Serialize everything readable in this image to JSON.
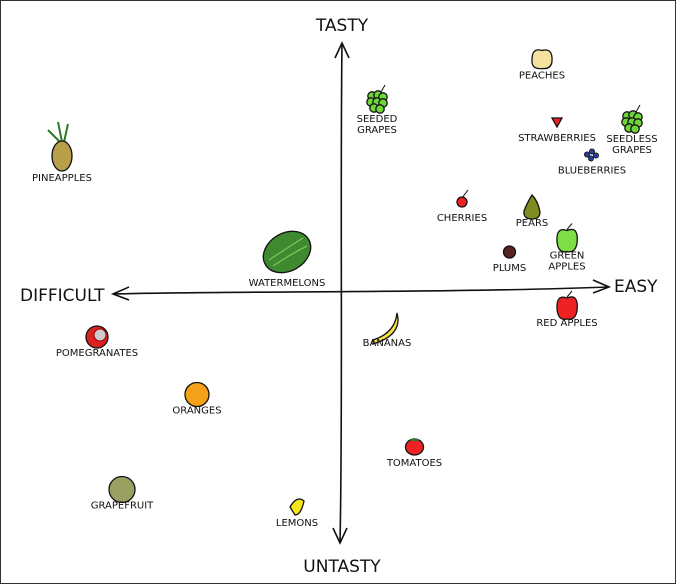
{
  "chart_data": {
    "type": "scatter",
    "xlabel_left": "DIFFICULT",
    "xlabel_right": "EASY",
    "ylabel_top": "TASTY",
    "ylabel_bottom": "UNTASTY",
    "xlim": [
      -1.2,
      1.2
    ],
    "ylim": [
      -1,
      1
    ],
    "grid": false,
    "points": [
      {
        "label": "PEACHES",
        "x": 0.8,
        "y": 0.93,
        "icon": "peach",
        "color": "#f5e2a0"
      },
      {
        "label": "SEEDED GRAPES",
        "x": 0.14,
        "y": 0.76,
        "icon": "grapes",
        "color": "#6fd63a"
      },
      {
        "label": "STRAWBERRIES",
        "x": 0.86,
        "y": 0.68,
        "icon": "strawberry",
        "color": "#ee2222"
      },
      {
        "label": "SEEDLESS GRAPES",
        "x": 1.16,
        "y": 0.68,
        "icon": "grapes",
        "color": "#6fd63a"
      },
      {
        "label": "BLUEBERRIES",
        "x": 1.0,
        "y": 0.55,
        "icon": "blueberries",
        "color": "#2a3f9a"
      },
      {
        "label": "PINEAPPLES",
        "x": -1.12,
        "y": 0.56,
        "icon": "pineapple",
        "color": "#b8a04a"
      },
      {
        "label": "CHERRIES",
        "x": 0.48,
        "y": 0.36,
        "icon": "cherry",
        "color": "#ee2222"
      },
      {
        "label": "PEARS",
        "x": 0.76,
        "y": 0.34,
        "icon": "pear",
        "color": "#7f8c22"
      },
      {
        "label": "PLUMS",
        "x": 0.67,
        "y": 0.16,
        "icon": "plum",
        "color": "#5a2323"
      },
      {
        "label": "GREEN APPLES",
        "x": 0.9,
        "y": 0.21,
        "icon": "apple",
        "color": "#7ddf45"
      },
      {
        "label": "WATERMELONS",
        "x": -0.22,
        "y": 0.16,
        "icon": "watermelon",
        "color": "#3f8a30"
      },
      {
        "label": "RED APPLES",
        "x": 0.9,
        "y": -0.06,
        "icon": "apple",
        "color": "#ee2222"
      },
      {
        "label": "POMEGRANATES",
        "x": -0.98,
        "y": -0.18,
        "icon": "pomegranate",
        "color": "#dd2020"
      },
      {
        "label": "BANANAS",
        "x": 0.18,
        "y": -0.14,
        "icon": "banana",
        "color": "#f5e04a"
      },
      {
        "label": "ORANGES",
        "x": -0.58,
        "y": -0.41,
        "icon": "orange",
        "color": "#f5a21a"
      },
      {
        "label": "TOMATOES",
        "x": 0.29,
        "y": -0.62,
        "icon": "tomato",
        "color": "#ee2222"
      },
      {
        "label": "GRAPEFRUIT",
        "x": -0.88,
        "y": -0.79,
        "icon": "grapefruit",
        "color": "#9aa062"
      },
      {
        "label": "LEMONS",
        "x": -0.18,
        "y": -0.86,
        "icon": "lemon",
        "color": "#f5e61a"
      }
    ]
  }
}
